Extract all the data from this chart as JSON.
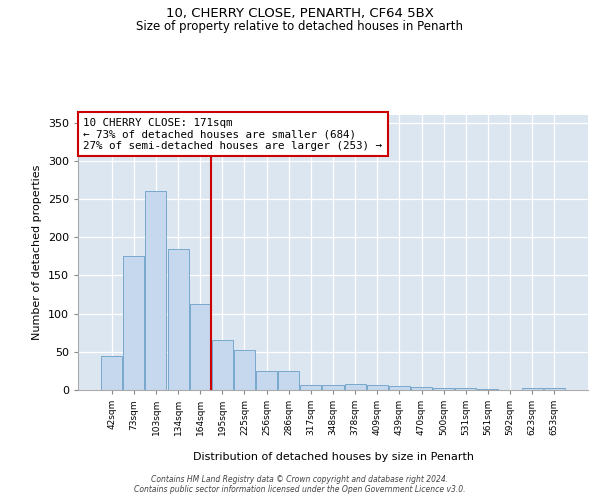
{
  "title1": "10, CHERRY CLOSE, PENARTH, CF64 5BX",
  "title2": "Size of property relative to detached houses in Penarth",
  "xlabel": "Distribution of detached houses by size in Penarth",
  "ylabel": "Number of detached properties",
  "categories": [
    "42sqm",
    "73sqm",
    "103sqm",
    "134sqm",
    "164sqm",
    "195sqm",
    "225sqm",
    "256sqm",
    "286sqm",
    "317sqm",
    "348sqm",
    "378sqm",
    "409sqm",
    "439sqm",
    "470sqm",
    "500sqm",
    "531sqm",
    "561sqm",
    "592sqm",
    "623sqm",
    "653sqm"
  ],
  "values": [
    45,
    175,
    260,
    185,
    113,
    65,
    52,
    25,
    25,
    7,
    6,
    8,
    6,
    5,
    4,
    3,
    2,
    1,
    0,
    3,
    3
  ],
  "bar_color": "#c5d8ed",
  "bar_edge_color": "#6a9fc8",
  "vline_color": "#cc0000",
  "vline_position": 4.5,
  "ylim_max": 360,
  "yticks": [
    0,
    50,
    100,
    150,
    200,
    250,
    300,
    350
  ],
  "bg_color": "#dce6f1",
  "grid_color": "white",
  "annotation_line1": "10 CHERRY CLOSE: 171sqm",
  "annotation_line2": "← 73% of detached houses are smaller (684)",
  "annotation_line3": "27% of semi-detached houses are larger (253) →",
  "footer": "Contains HM Land Registry data © Crown copyright and database right 2024.\nContains public sector information licensed under the Open Government Licence v3.0."
}
